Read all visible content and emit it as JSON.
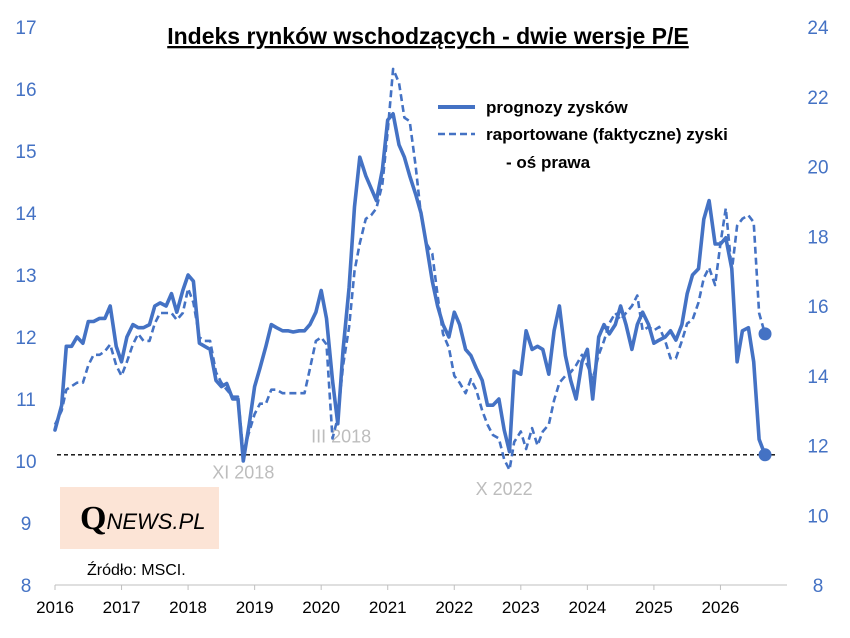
{
  "chart_data": {
    "type": "line",
    "title": "Indeks rynków wschodzących - dwie wersje P/E",
    "y_left_range": [
      8,
      17
    ],
    "y_left_ticks": [
      "8",
      "9",
      "10",
      "11",
      "12",
      "13",
      "14",
      "15",
      "16",
      "17"
    ],
    "y_right_range": [
      8,
      24
    ],
    "y_right_ticks": [
      "8",
      "10",
      "12",
      "14",
      "16",
      "18",
      "20",
      "22",
      "24"
    ],
    "x_range": [
      2016,
      2027
    ],
    "x_ticks": [
      "2016",
      "2017",
      "2018",
      "2019",
      "2020",
      "2021",
      "2022",
      "2023",
      "2024",
      "2025",
      "2026"
    ],
    "grid": false,
    "legend_position": "top-right",
    "legend": [
      {
        "label": "prognozy zysków",
        "style": "solid"
      },
      {
        "label": "raportowane (faktyczne) zyski",
        "style": "dashed"
      },
      {
        "label": "- oś prawa",
        "style": "none"
      }
    ],
    "series": [
      {
        "name": "prognozy zysków",
        "axis": "left",
        "color": "#4472C4",
        "points": [
          [
            2016.0,
            10.5
          ],
          [
            2016.1,
            10.9
          ],
          [
            2016.17,
            11.85
          ],
          [
            2016.25,
            11.85
          ],
          [
            2016.33,
            12.0
          ],
          [
            2016.42,
            11.9
          ],
          [
            2016.5,
            12.25
          ],
          [
            2016.58,
            12.25
          ],
          [
            2016.67,
            12.3
          ],
          [
            2016.75,
            12.3
          ],
          [
            2016.83,
            12.5
          ],
          [
            2016.92,
            11.85
          ],
          [
            2017.0,
            11.6
          ],
          [
            2017.08,
            12.0
          ],
          [
            2017.17,
            12.2
          ],
          [
            2017.25,
            12.15
          ],
          [
            2017.33,
            12.15
          ],
          [
            2017.42,
            12.2
          ],
          [
            2017.5,
            12.5
          ],
          [
            2017.58,
            12.55
          ],
          [
            2017.67,
            12.5
          ],
          [
            2017.75,
            12.7
          ],
          [
            2017.83,
            12.4
          ],
          [
            2017.92,
            12.75
          ],
          [
            2018.0,
            13.0
          ],
          [
            2018.08,
            12.9
          ],
          [
            2018.17,
            11.9
          ],
          [
            2018.25,
            11.85
          ],
          [
            2018.33,
            11.8
          ],
          [
            2018.42,
            11.3
          ],
          [
            2018.5,
            11.2
          ],
          [
            2018.58,
            11.25
          ],
          [
            2018.67,
            11.0
          ],
          [
            2018.75,
            11.0
          ],
          [
            2018.83,
            10.0
          ],
          [
            2018.92,
            10.6
          ],
          [
            2019.0,
            11.2
          ],
          [
            2019.08,
            11.5
          ],
          [
            2019.17,
            11.85
          ],
          [
            2019.25,
            12.2
          ],
          [
            2019.33,
            12.15
          ],
          [
            2019.42,
            12.1
          ],
          [
            2019.5,
            12.1
          ],
          [
            2019.58,
            12.08
          ],
          [
            2019.67,
            12.1
          ],
          [
            2019.75,
            12.1
          ],
          [
            2019.83,
            12.2
          ],
          [
            2019.92,
            12.4
          ],
          [
            2020.0,
            12.75
          ],
          [
            2020.08,
            12.3
          ],
          [
            2020.17,
            11.3
          ],
          [
            2020.25,
            10.6
          ],
          [
            2020.33,
            11.8
          ],
          [
            2020.42,
            12.8
          ],
          [
            2020.5,
            14.1
          ],
          [
            2020.58,
            14.9
          ],
          [
            2020.67,
            14.6
          ],
          [
            2020.75,
            14.4
          ],
          [
            2020.83,
            14.2
          ],
          [
            2020.92,
            14.7
          ],
          [
            2021.0,
            15.5
          ],
          [
            2021.08,
            15.6
          ],
          [
            2021.17,
            15.1
          ],
          [
            2021.25,
            14.9
          ],
          [
            2021.33,
            14.6
          ],
          [
            2021.42,
            14.3
          ],
          [
            2021.5,
            14.0
          ],
          [
            2021.58,
            13.5
          ],
          [
            2021.67,
            12.9
          ],
          [
            2021.75,
            12.5
          ],
          [
            2021.83,
            12.2
          ],
          [
            2021.92,
            12.0
          ],
          [
            2022.0,
            12.4
          ],
          [
            2022.08,
            12.2
          ],
          [
            2022.17,
            11.8
          ],
          [
            2022.25,
            11.7
          ],
          [
            2022.33,
            11.5
          ],
          [
            2022.42,
            11.3
          ],
          [
            2022.5,
            10.9
          ],
          [
            2022.58,
            10.9
          ],
          [
            2022.67,
            11.0
          ],
          [
            2022.75,
            10.5
          ],
          [
            2022.83,
            10.15
          ],
          [
            2022.9,
            11.45
          ],
          [
            2023.0,
            11.4
          ],
          [
            2023.08,
            12.1
          ],
          [
            2023.17,
            11.8
          ],
          [
            2023.25,
            11.85
          ],
          [
            2023.33,
            11.8
          ],
          [
            2023.42,
            11.4
          ],
          [
            2023.5,
            12.1
          ],
          [
            2023.58,
            12.5
          ],
          [
            2023.67,
            11.7
          ],
          [
            2023.75,
            11.3
          ],
          [
            2023.83,
            11.0
          ],
          [
            2023.92,
            11.6
          ],
          [
            2024.0,
            11.8
          ],
          [
            2024.08,
            11.0
          ],
          [
            2024.17,
            12.0
          ],
          [
            2024.25,
            12.2
          ],
          [
            2024.33,
            12.05
          ],
          [
            2024.42,
            12.2
          ],
          [
            2024.5,
            12.5
          ],
          [
            2024.58,
            12.2
          ],
          [
            2024.67,
            11.8
          ],
          [
            2024.75,
            12.2
          ],
          [
            2024.83,
            12.4
          ],
          [
            2024.92,
            12.2
          ],
          [
            2025.0,
            11.9
          ],
          [
            2025.08,
            11.95
          ],
          [
            2025.17,
            12.0
          ],
          [
            2025.25,
            12.1
          ],
          [
            2025.33,
            11.95
          ],
          [
            2025.42,
            12.2
          ],
          [
            2025.5,
            12.7
          ],
          [
            2025.58,
            13.0
          ],
          [
            2025.67,
            13.1
          ],
          [
            2025.75,
            13.9
          ],
          [
            2025.83,
            14.2
          ],
          [
            2025.92,
            13.5
          ],
          [
            2026.0,
            13.5
          ],
          [
            2026.08,
            13.6
          ],
          [
            2026.17,
            13.1
          ],
          [
            2026.25,
            11.6
          ],
          [
            2026.33,
            12.1
          ],
          [
            2026.42,
            12.15
          ],
          [
            2026.5,
            11.6
          ],
          [
            2026.58,
            10.35
          ],
          [
            2026.67,
            10.1
          ]
        ]
      },
      {
        "name": "raportowane (faktyczne) zyski",
        "axis": "right",
        "color": "#4472C4",
        "points": [
          [
            2016.0,
            12.6
          ],
          [
            2016.1,
            13.0
          ],
          [
            2016.17,
            13.6
          ],
          [
            2016.25,
            13.7
          ],
          [
            2016.33,
            13.8
          ],
          [
            2016.42,
            13.8
          ],
          [
            2016.5,
            14.3
          ],
          [
            2016.58,
            14.6
          ],
          [
            2016.67,
            14.6
          ],
          [
            2016.75,
            14.7
          ],
          [
            2016.83,
            14.9
          ],
          [
            2016.92,
            14.3
          ],
          [
            2017.0,
            14.0
          ],
          [
            2017.08,
            14.4
          ],
          [
            2017.17,
            14.9
          ],
          [
            2017.25,
            15.2
          ],
          [
            2017.33,
            15.0
          ],
          [
            2017.42,
            15.0
          ],
          [
            2017.5,
            15.5
          ],
          [
            2017.58,
            15.8
          ],
          [
            2017.67,
            15.8
          ],
          [
            2017.75,
            15.8
          ],
          [
            2017.83,
            15.6
          ],
          [
            2017.92,
            15.8
          ],
          [
            2018.0,
            16.5
          ],
          [
            2018.08,
            16.1
          ],
          [
            2018.17,
            15.1
          ],
          [
            2018.25,
            15.0
          ],
          [
            2018.33,
            15.0
          ],
          [
            2018.42,
            14.1
          ],
          [
            2018.5,
            13.8
          ],
          [
            2018.58,
            13.6
          ],
          [
            2018.67,
            13.4
          ],
          [
            2018.75,
            13.4
          ],
          [
            2018.83,
            11.8
          ],
          [
            2018.92,
            12.4
          ],
          [
            2019.0,
            12.9
          ],
          [
            2019.08,
            13.2
          ],
          [
            2019.17,
            13.2
          ],
          [
            2019.25,
            13.6
          ],
          [
            2019.33,
            13.6
          ],
          [
            2019.42,
            13.5
          ],
          [
            2019.5,
            13.5
          ],
          [
            2019.58,
            13.5
          ],
          [
            2019.67,
            13.5
          ],
          [
            2019.75,
            13.5
          ],
          [
            2019.83,
            14.2
          ],
          [
            2019.92,
            15.0
          ],
          [
            2020.0,
            15.1
          ],
          [
            2020.08,
            14.9
          ],
          [
            2020.17,
            12.2
          ],
          [
            2020.25,
            12.8
          ],
          [
            2020.33,
            14.3
          ],
          [
            2020.42,
            15.4
          ],
          [
            2020.5,
            17.0
          ],
          [
            2020.58,
            17.8
          ],
          [
            2020.67,
            18.5
          ],
          [
            2020.75,
            18.6
          ],
          [
            2020.83,
            18.8
          ],
          [
            2020.92,
            19.5
          ],
          [
            2021.0,
            21.0
          ],
          [
            2021.08,
            22.8
          ],
          [
            2021.17,
            22.4
          ],
          [
            2021.25,
            21.4
          ],
          [
            2021.33,
            21.3
          ],
          [
            2021.42,
            20.0
          ],
          [
            2021.5,
            18.6
          ],
          [
            2021.58,
            17.8
          ],
          [
            2021.67,
            17.5
          ],
          [
            2021.75,
            16.3
          ],
          [
            2021.83,
            15.2
          ],
          [
            2021.92,
            14.8
          ],
          [
            2022.0,
            14.0
          ],
          [
            2022.08,
            13.8
          ],
          [
            2022.17,
            13.5
          ],
          [
            2022.25,
            13.9
          ],
          [
            2022.33,
            13.6
          ],
          [
            2022.42,
            13.0
          ],
          [
            2022.5,
            12.6
          ],
          [
            2022.58,
            12.3
          ],
          [
            2022.67,
            12.2
          ],
          [
            2022.75,
            11.6
          ],
          [
            2022.83,
            11.3
          ],
          [
            2022.9,
            12.1
          ],
          [
            2023.0,
            12.4
          ],
          [
            2023.08,
            11.9
          ],
          [
            2023.17,
            12.5
          ],
          [
            2023.25,
            12.0
          ],
          [
            2023.33,
            12.4
          ],
          [
            2023.42,
            12.6
          ],
          [
            2023.5,
            13.3
          ],
          [
            2023.58,
            13.8
          ],
          [
            2023.67,
            14.0
          ],
          [
            2023.75,
            14.1
          ],
          [
            2023.83,
            14.3
          ],
          [
            2023.92,
            14.6
          ],
          [
            2024.0,
            14.3
          ],
          [
            2024.08,
            13.9
          ],
          [
            2024.17,
            14.6
          ],
          [
            2024.25,
            15.0
          ],
          [
            2024.33,
            15.5
          ],
          [
            2024.42,
            15.8
          ],
          [
            2024.5,
            15.6
          ],
          [
            2024.58,
            15.8
          ],
          [
            2024.67,
            16.0
          ],
          [
            2024.75,
            16.3
          ],
          [
            2024.83,
            15.3
          ],
          [
            2024.92,
            15.4
          ],
          [
            2025.0,
            15.3
          ],
          [
            2025.08,
            15.4
          ],
          [
            2025.17,
            15.0
          ],
          [
            2025.25,
            14.5
          ],
          [
            2025.33,
            14.5
          ],
          [
            2025.42,
            15.0
          ],
          [
            2025.5,
            15.5
          ],
          [
            2025.58,
            15.6
          ],
          [
            2025.67,
            16.1
          ],
          [
            2025.75,
            16.8
          ],
          [
            2025.83,
            17.1
          ],
          [
            2025.92,
            16.6
          ],
          [
            2026.0,
            17.8
          ],
          [
            2026.08,
            18.8
          ],
          [
            2026.17,
            17.0
          ],
          [
            2026.25,
            18.3
          ],
          [
            2026.33,
            18.5
          ],
          [
            2026.42,
            18.6
          ],
          [
            2026.5,
            18.4
          ],
          [
            2026.58,
            15.8
          ],
          [
            2026.67,
            15.2
          ]
        ]
      }
    ],
    "end_markers": [
      {
        "series": "prognozy zysków",
        "x": 2026.67,
        "y": 10.1,
        "axis": "left"
      },
      {
        "series": "raportowane (faktyczne) zyski",
        "x": 2026.67,
        "y": 15.2,
        "axis": "right"
      }
    ],
    "reference_line": {
      "axis": "left",
      "y": 10.1,
      "style": "dashed",
      "color": "#000000"
    },
    "annotations": [
      {
        "text": "III 2018",
        "x": 2020.3,
        "y": 10.3,
        "axis": "left"
      },
      {
        "text": "XI 2018",
        "x": 2018.83,
        "y": 9.72,
        "axis": "left"
      },
      {
        "text": "X 2022",
        "x": 2022.75,
        "y": 9.45,
        "axis": "left"
      }
    ],
    "source_label": "Źródło: MSCI.",
    "logo": {
      "q": "Q",
      "text": "NEWS.PL",
      "background": "#FCE4D6"
    }
  }
}
